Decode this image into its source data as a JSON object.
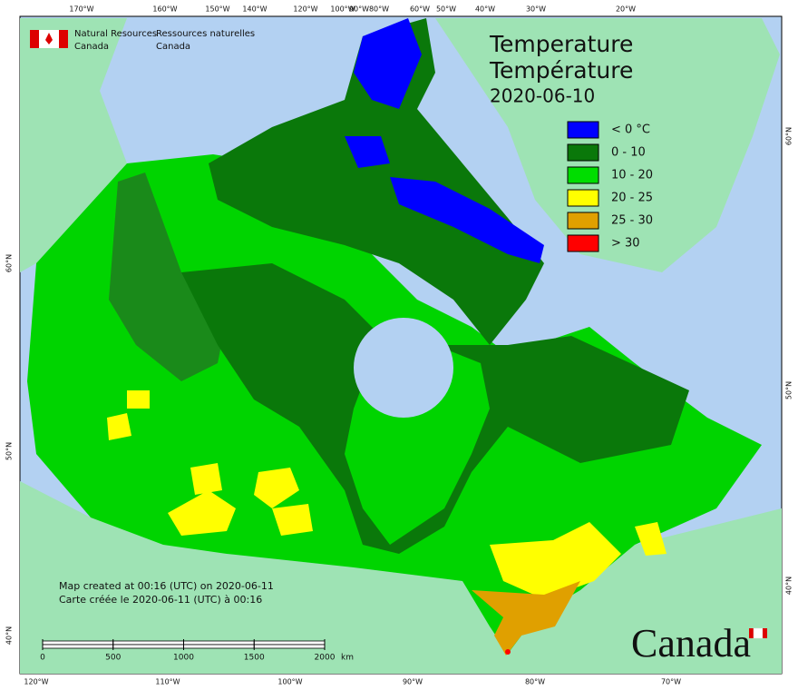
{
  "header": {
    "org_en": [
      "Natural Resources",
      "Canada"
    ],
    "org_fr": [
      "Ressources naturelles",
      "Canada"
    ]
  },
  "title": [
    "Temperature",
    "Température",
    "2020-06-10"
  ],
  "legend": [
    {
      "label": "< 0 °C",
      "color": "#0000ff"
    },
    {
      "label": "0 - 10",
      "color": "#0a780a"
    },
    {
      "label": "10 - 20",
      "color": "#00dd00"
    },
    {
      "label": "20 - 25",
      "color": "#ffff00"
    },
    {
      "label": "25 - 30",
      "color": "#e0a000"
    },
    {
      "label": "> 30",
      "color": "#ff0000"
    }
  ],
  "graticule": {
    "top": [
      "170°W",
      "160°W",
      "150°W",
      "140°W",
      "120°W",
      "100°W",
      "90°W",
      "80°W",
      "60°W",
      "50°W",
      "40°W",
      "30°W",
      "20°W"
    ],
    "bottom": [
      "120°W",
      "110°W",
      "100°W",
      "90°W",
      "80°W",
      "70°W"
    ],
    "left": [
      "60°N",
      "50°N",
      "40°N"
    ],
    "right": [
      "60°N",
      "50°N",
      "40°N"
    ]
  },
  "notes": [
    "Map created at 00:16 (UTC) on 2020-06-11",
    "Carte créée le 2020-06-11 (UTC) à 00:16"
  ],
  "scale_bar": {
    "ticks": [
      0,
      500,
      1000,
      1500,
      2000
    ],
    "unit": "km"
  },
  "wordmark": "Canada"
}
